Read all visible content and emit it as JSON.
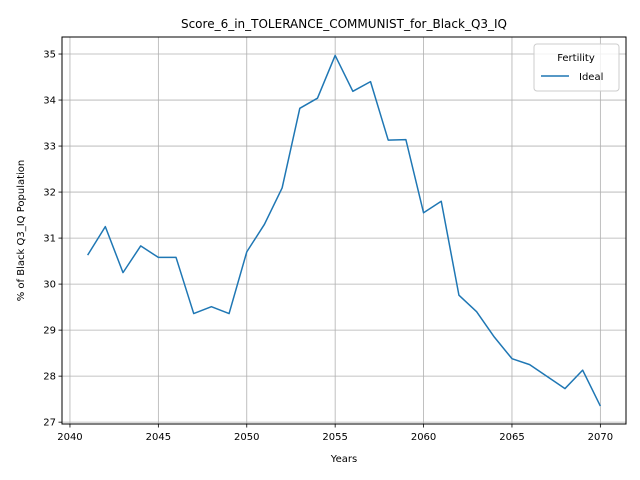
{
  "chart_data": {
    "type": "line",
    "title": "Score_6_in_TOLERANCE_COMMUNIST_for_Black_Q3_IQ",
    "xlabel": "Years",
    "ylabel": "% of Black Q3_IQ Population",
    "xlim": [
      2039.55,
      2071.45
    ],
    "ylim": [
      26.96,
      35.37
    ],
    "xticks": [
      2040,
      2045,
      2050,
      2055,
      2060,
      2065,
      2070
    ],
    "yticks": [
      27,
      28,
      29,
      30,
      31,
      32,
      33,
      34,
      35
    ],
    "grid": true,
    "legend": {
      "title": "Fertility",
      "placement": "top-right"
    },
    "colors": {
      "line": "#1f77b4"
    },
    "series": [
      {
        "name": "Ideal",
        "x": [
          2041,
          2042,
          2043,
          2044,
          2045,
          2046,
          2047,
          2048,
          2049,
          2050,
          2051,
          2052,
          2053,
          2054,
          2055,
          2056,
          2057,
          2058,
          2059,
          2060,
          2061,
          2062,
          2063,
          2064,
          2065,
          2066,
          2067,
          2068,
          2069,
          2070
        ],
        "values": [
          30.63,
          31.25,
          30.25,
          30.83,
          30.58,
          30.58,
          29.36,
          29.51,
          29.36,
          30.7,
          31.3,
          32.09,
          33.82,
          34.04,
          34.97,
          34.19,
          34.4,
          33.13,
          33.14,
          31.55,
          31.8,
          29.76,
          29.4,
          28.85,
          28.38,
          28.25,
          27.99,
          27.73,
          28.13,
          27.35
        ]
      }
    ]
  }
}
